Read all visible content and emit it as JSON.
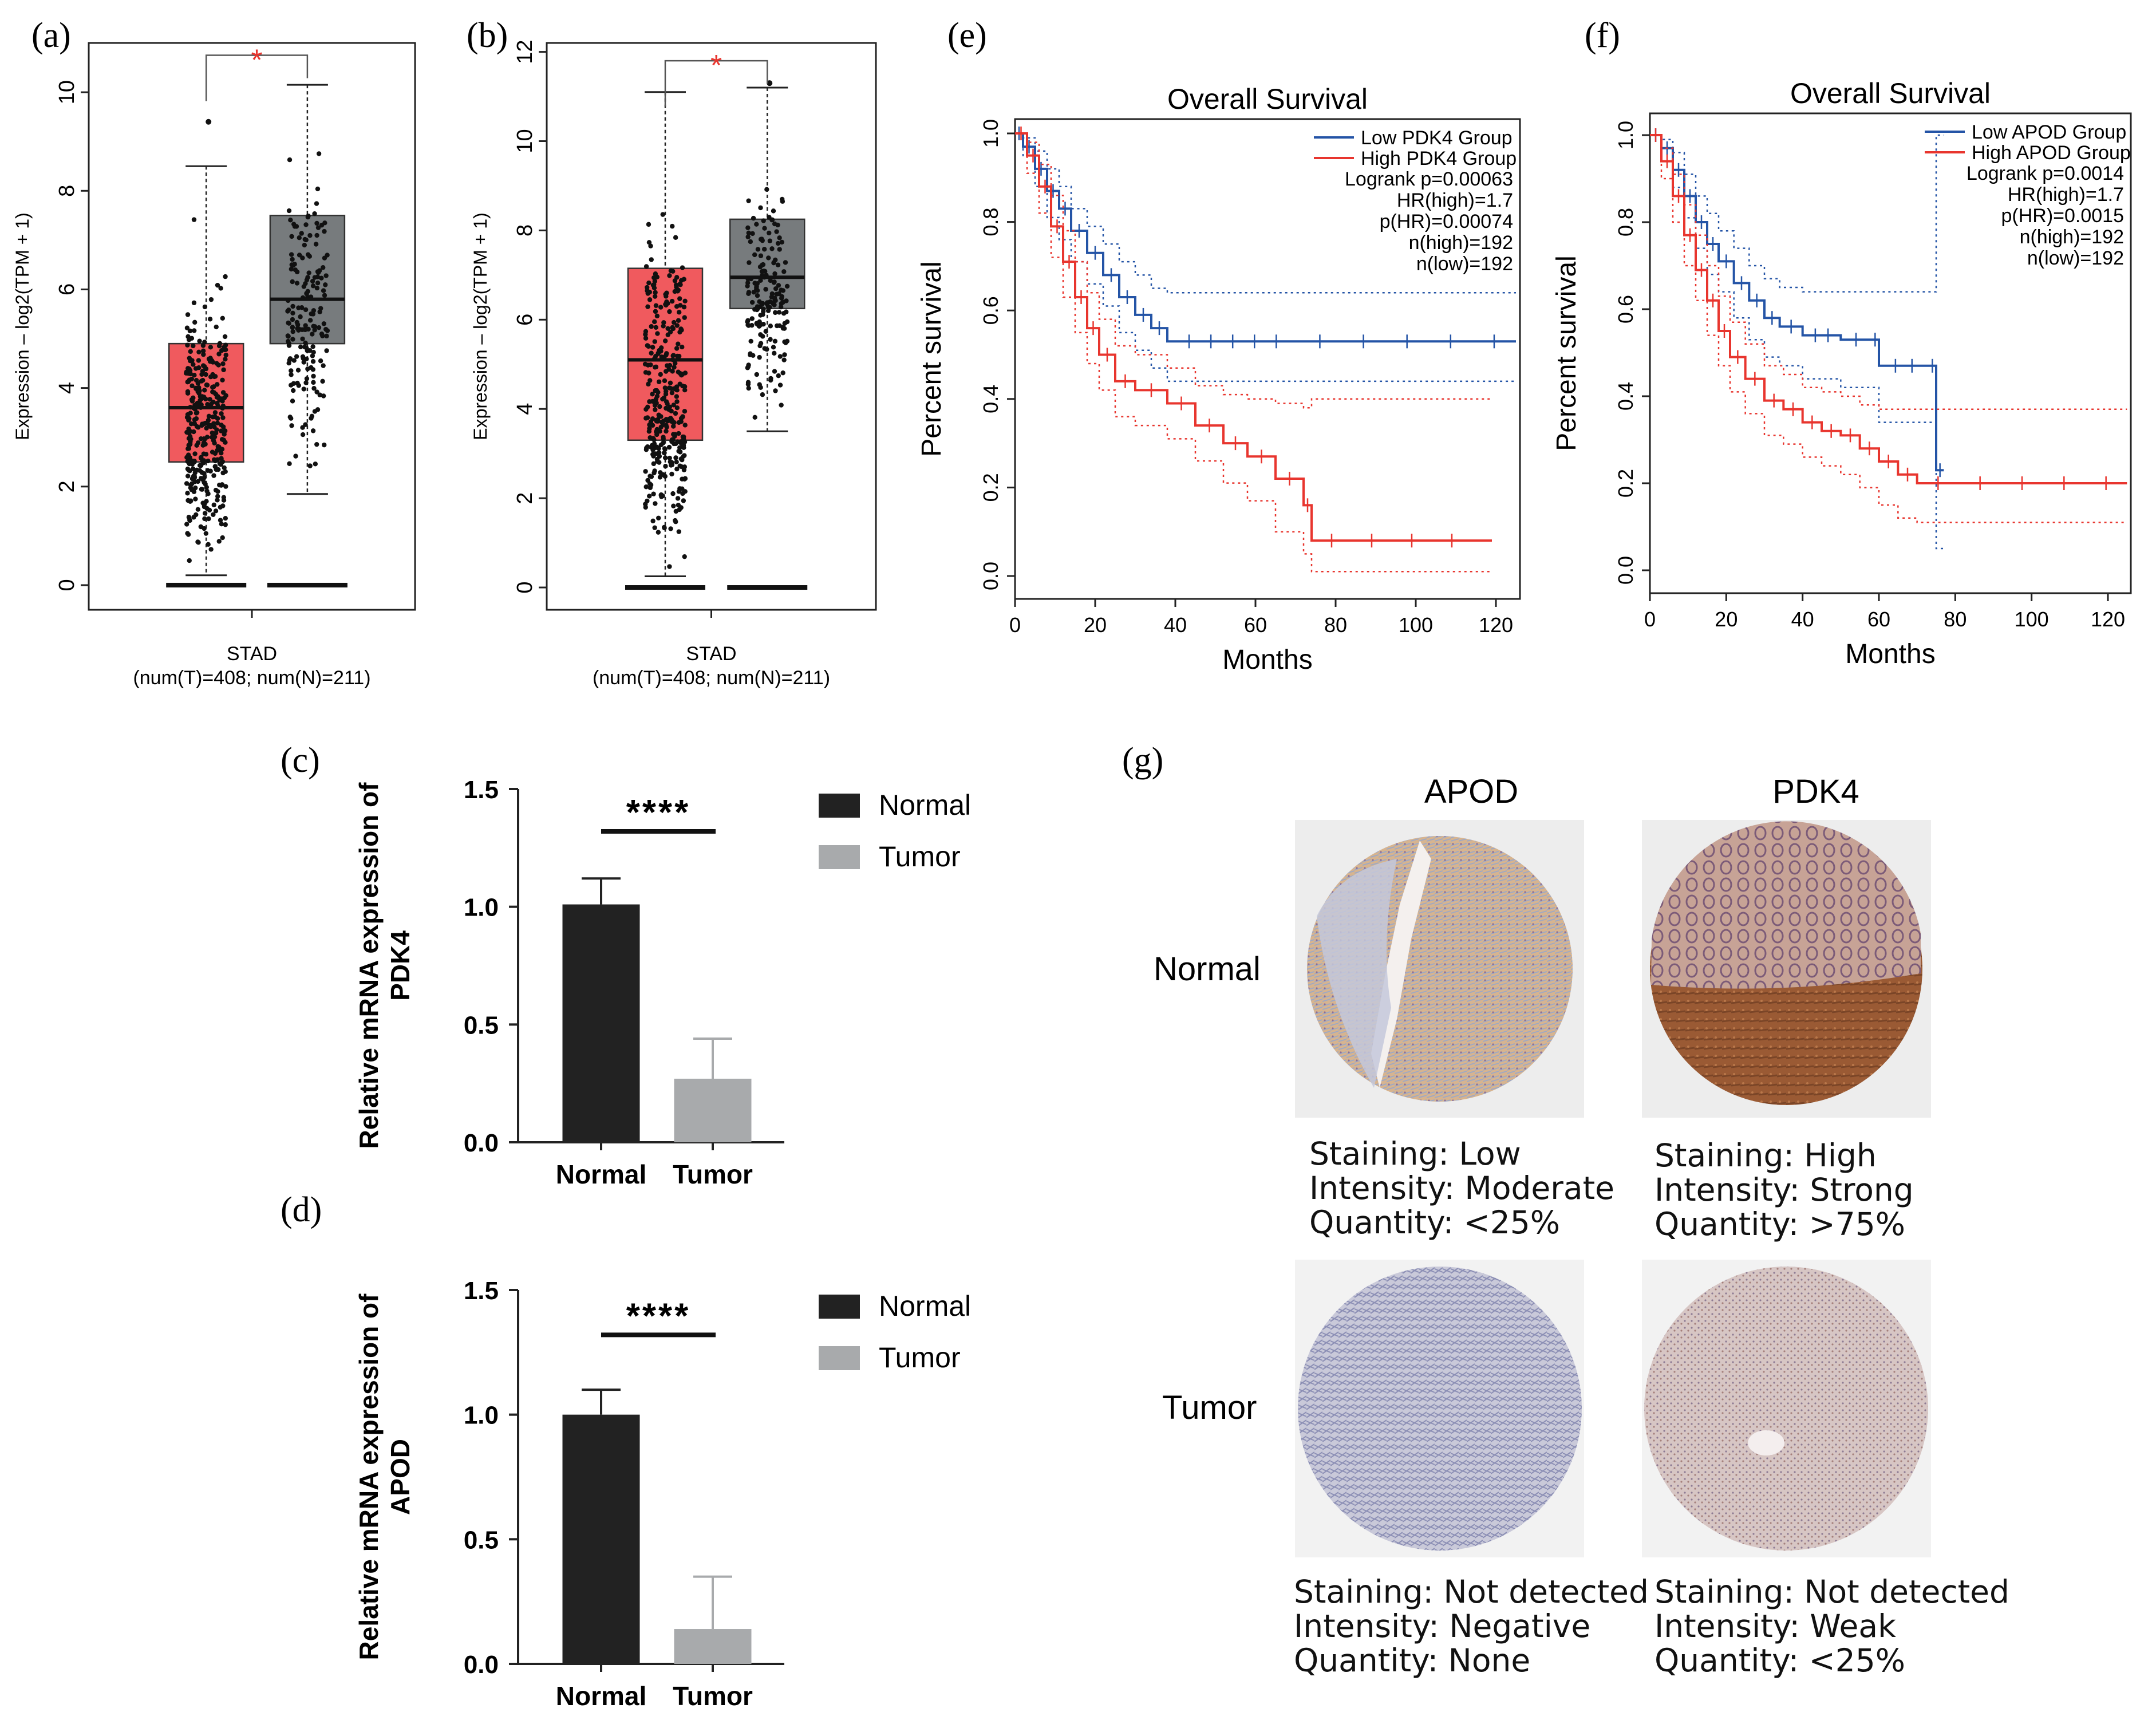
{
  "panel_labels": {
    "a": "(a)",
    "b": "(b)",
    "c": "(c)",
    "d": "(d)",
    "e": "(e)",
    "f": "(f)",
    "g": "(g)"
  },
  "colors": {
    "tumor_box": "#f05a5e",
    "normal_box": "#777b7d",
    "low_group": "#2454a6",
    "high_group": "#e8352e",
    "normal_bar": "#222222",
    "tumor_bar": "#a8aaac",
    "sig_red": "#e8352e"
  },
  "chart_data": [
    {
      "id": "a",
      "type": "box",
      "title": "",
      "ylabel": "Expression – log2(TPM + 1)",
      "xlabel": "STAD",
      "xsub": "(num(T)=408; num(N)=211)",
      "significance": "*",
      "ylim": [
        -0.5,
        11
      ],
      "yticks": [
        0,
        2,
        4,
        6,
        8,
        10
      ],
      "series": [
        {
          "name": "Tumor",
          "n": 408,
          "median": 3.6,
          "q1": 2.5,
          "q3": 4.9,
          "whisker_low": 0.2,
          "whisker_high": 8.5,
          "outliers_high": [
            9.4
          ]
        },
        {
          "name": "Normal",
          "n": 211,
          "median": 5.8,
          "q1": 4.9,
          "q3": 7.5,
          "whisker_low": 1.85,
          "whisker_high": 10.15,
          "outliers_high": []
        }
      ]
    },
    {
      "id": "b",
      "type": "box",
      "title": "",
      "ylabel": "Expression – log2(TPM + 1)",
      "xlabel": "STAD",
      "xsub": "(num(T)=408; num(N)=211)",
      "significance": "*",
      "ylim": [
        -0.5,
        12.2
      ],
      "yticks": [
        0,
        2,
        4,
        6,
        8,
        10,
        12
      ],
      "series": [
        {
          "name": "Tumor",
          "n": 408,
          "median": 5.1,
          "q1": 3.3,
          "q3": 7.15,
          "whisker_low": 0.25,
          "whisker_high": 11.1,
          "outliers_high": []
        },
        {
          "name": "Normal",
          "n": 211,
          "median": 6.95,
          "q1": 6.25,
          "q3": 8.25,
          "whisker_low": 3.5,
          "whisker_high": 11.2,
          "outliers_high": [
            11.3
          ]
        }
      ]
    },
    {
      "id": "c",
      "type": "bar",
      "categories": [
        "Normal",
        "Tumor"
      ],
      "values": [
        1.01,
        0.27
      ],
      "errors": [
        0.11,
        0.17
      ],
      "ylabel_line1": "Relative mRNA expression of",
      "ylabel_line2": "PDK4",
      "ylim": [
        0,
        1.5
      ],
      "yticks": [
        "0.0",
        "0.5",
        "1.0",
        "1.5"
      ],
      "significance": "****",
      "legend": [
        "Normal",
        "Tumor"
      ]
    },
    {
      "id": "d",
      "type": "bar",
      "categories": [
        "Normal",
        "Tumor"
      ],
      "values": [
        1.0,
        0.14
      ],
      "errors": [
        0.1,
        0.21
      ],
      "ylabel_line1": "Relative mRNA expression of",
      "ylabel_line2": "APOD",
      "ylim": [
        0,
        1.5
      ],
      "yticks": [
        "0.0",
        "0.5",
        "1.0",
        "1.5"
      ],
      "significance": "****",
      "legend": [
        "Normal",
        "Tumor"
      ]
    },
    {
      "id": "e",
      "type": "line",
      "title": "Overall Survival",
      "xlabel": "Months",
      "ylabel": "Percent survival",
      "xlim": [
        0,
        126
      ],
      "ylim": [
        0,
        1.0
      ],
      "xticks": [
        0,
        20,
        40,
        60,
        80,
        100,
        120
      ],
      "yticks": [
        "0.0",
        "0.2",
        "0.4",
        "0.6",
        "0.8",
        "1.0"
      ],
      "legend": [
        "Low PDK4 Group",
        "High PDK4 Group"
      ],
      "stats": [
        "Logrank p=0.00063",
        "HR(high)=1.7",
        "p(HR)=0.00074",
        "n(high)=192",
        "n(low)=192"
      ],
      "series": [
        {
          "name": "Low PDK4 Group",
          "x": [
            0,
            2,
            5,
            8,
            11,
            14,
            18,
            22,
            26,
            30,
            34,
            38,
            125
          ],
          "y": [
            1.0,
            0.97,
            0.92,
            0.87,
            0.83,
            0.78,
            0.73,
            0.68,
            0.63,
            0.59,
            0.56,
            0.53,
            0.53
          ],
          "ci_upper": [
            1.0,
            0.99,
            0.96,
            0.92,
            0.88,
            0.83,
            0.79,
            0.75,
            0.71,
            0.68,
            0.65,
            0.64,
            0.64
          ],
          "ci_lower": [
            1.0,
            0.95,
            0.88,
            0.81,
            0.76,
            0.71,
            0.66,
            0.61,
            0.55,
            0.51,
            0.47,
            0.44,
            0.44
          ]
        },
        {
          "name": "High PDK4 Group",
          "x": [
            0,
            3,
            6,
            9,
            12,
            15,
            18,
            21,
            25,
            30,
            38,
            45,
            52,
            58,
            65,
            72,
            74,
            119
          ],
          "y": [
            1.0,
            0.95,
            0.88,
            0.79,
            0.71,
            0.63,
            0.56,
            0.5,
            0.44,
            0.42,
            0.39,
            0.34,
            0.3,
            0.27,
            0.22,
            0.16,
            0.08,
            0.08
          ],
          "ci_upper": [
            1.0,
            0.98,
            0.93,
            0.86,
            0.78,
            0.71,
            0.64,
            0.58,
            0.52,
            0.5,
            0.47,
            0.43,
            0.41,
            0.4,
            0.39,
            0.38,
            0.4,
            0.4
          ],
          "ci_lower": [
            1.0,
            0.91,
            0.82,
            0.72,
            0.63,
            0.55,
            0.48,
            0.42,
            0.36,
            0.34,
            0.31,
            0.26,
            0.21,
            0.17,
            0.1,
            0.05,
            0.01,
            0.01
          ]
        }
      ]
    },
    {
      "id": "f",
      "type": "line",
      "title": "Overall Survival",
      "xlabel": "Months",
      "ylabel": "Percent survival",
      "xlim": [
        0,
        126
      ],
      "ylim": [
        0,
        1.0
      ],
      "xticks": [
        0,
        20,
        40,
        60,
        80,
        100,
        120
      ],
      "yticks": [
        "0.0",
        "0.2",
        "0.4",
        "0.6",
        "0.8",
        "1.0"
      ],
      "legend": [
        "Low APOD Group",
        "High APOD Group"
      ],
      "stats": [
        "Logrank p=0.0014",
        "HR(high)=1.7",
        "p(HR)=0.0015",
        "n(high)=192",
        "n(low)=192"
      ],
      "series": [
        {
          "name": "Low APOD Group",
          "x": [
            0,
            3,
            6,
            9,
            12,
            15,
            18,
            22,
            26,
            30,
            34,
            40,
            50,
            58,
            60,
            73,
            75,
            77
          ],
          "y": [
            1.0,
            0.97,
            0.92,
            0.86,
            0.8,
            0.75,
            0.71,
            0.66,
            0.62,
            0.58,
            0.56,
            0.54,
            0.53,
            0.53,
            0.47,
            0.47,
            0.23,
            0.23
          ],
          "ci_upper": [
            1.0,
            0.99,
            0.96,
            0.91,
            0.86,
            0.82,
            0.78,
            0.74,
            0.7,
            0.67,
            0.65,
            0.64,
            0.64,
            0.64,
            0.64,
            0.64,
            1.0,
            1.0
          ],
          "ci_lower": [
            1.0,
            0.94,
            0.88,
            0.81,
            0.74,
            0.68,
            0.64,
            0.58,
            0.53,
            0.49,
            0.47,
            0.44,
            0.42,
            0.42,
            0.34,
            0.34,
            0.05,
            0.05
          ]
        },
        {
          "name": "High APOD Group",
          "x": [
            0,
            3,
            6,
            9,
            12,
            15,
            18,
            21,
            25,
            30,
            35,
            40,
            45,
            50,
            55,
            60,
            65,
            70,
            125
          ],
          "y": [
            1.0,
            0.94,
            0.86,
            0.77,
            0.69,
            0.62,
            0.55,
            0.49,
            0.44,
            0.39,
            0.37,
            0.34,
            0.32,
            0.31,
            0.28,
            0.25,
            0.22,
            0.2,
            0.2
          ],
          "ci_upper": [
            1.0,
            0.97,
            0.91,
            0.84,
            0.77,
            0.7,
            0.63,
            0.57,
            0.52,
            0.47,
            0.45,
            0.42,
            0.41,
            0.4,
            0.38,
            0.37,
            0.37,
            0.37,
            0.37
          ],
          "ci_lower": [
            1.0,
            0.9,
            0.8,
            0.7,
            0.62,
            0.54,
            0.47,
            0.41,
            0.36,
            0.31,
            0.29,
            0.26,
            0.24,
            0.22,
            0.19,
            0.15,
            0.12,
            0.11,
            0.11
          ]
        }
      ]
    }
  ],
  "histology": {
    "col_headers": [
      "APOD",
      "PDK4"
    ],
    "row_headers": [
      "Normal",
      "Tumor"
    ],
    "captions": {
      "apod_normal": [
        "Staining: Low",
        "Intensity: Moderate",
        "Quantity: <25%"
      ],
      "pdk4_normal": [
        "Staining: High",
        "Intensity: Strong",
        "Quantity: >75%"
      ],
      "apod_tumor": [
        "Staining: Not detected",
        "Intensity: Negative",
        "Quantity: None"
      ],
      "pdk4_tumor": [
        "Staining: Not detected",
        "Intensity: Weak",
        "Quantity: <25%"
      ]
    }
  }
}
